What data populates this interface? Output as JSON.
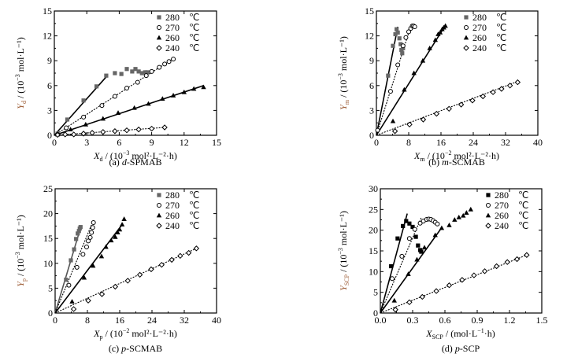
{
  "chart_data": [
    {
      "id": "a",
      "type": "scatter",
      "caption_prefix": "(a) ",
      "caption_italic": "d",
      "caption_suffix": "-SPMAB",
      "xlabel_sym": "X",
      "xlabel_sub": "d",
      "xlabel_rest": " / (10",
      "xlabel_exp": "−3",
      "xlabel_tail": " mol²·L⁻²·h)",
      "ylabel_sym": "Y",
      "ylabel_sub": "d",
      "ylabel_rest": " / (10",
      "ylabel_exp": "−3",
      "ylabel_tail": " mol·L⁻¹)",
      "xlim": [
        0,
        15
      ],
      "ylim": [
        0,
        15
      ],
      "xticks": [
        "0",
        "3",
        "6",
        "9",
        "12",
        "15"
      ],
      "yticks": [
        "0",
        "3",
        "6",
        "9",
        "12",
        "15"
      ],
      "series": [
        {
          "name": "280",
          "unit": "℃",
          "marker": "square",
          "color": "#666666",
          "x": [
            0.3,
            1.2,
            2.7,
            3.9,
            4.8,
            5.6,
            6.2,
            6.7,
            7.2,
            7.5,
            7.8,
            8.1,
            8.4,
            8.6
          ],
          "y": [
            0.2,
            1.9,
            4.2,
            5.9,
            7.2,
            7.5,
            7.4,
            8.0,
            7.7,
            8.0,
            7.7,
            7.5,
            7.6,
            7.6
          ],
          "fit": {
            "x": [
              0,
              4.9
            ],
            "y": [
              0,
              7.2
            ],
            "style": "solid"
          }
        },
        {
          "name": "270",
          "unit": "℃",
          "marker": "circle",
          "color": "#000000",
          "x": [
            0.3,
            1.1,
            2.7,
            4.4,
            5.6,
            6.7,
            7.7,
            8.5,
            9.0,
            9.7,
            10.2,
            10.6,
            11.0
          ],
          "y": [
            0.1,
            0.9,
            2.2,
            3.6,
            4.7,
            5.7,
            6.4,
            7.2,
            7.7,
            8.2,
            8.6,
            8.9,
            9.2
          ],
          "fit": {
            "x": [
              0,
              10.8
            ],
            "y": [
              0,
              9.1
            ],
            "style": "dotted"
          }
        },
        {
          "name": "260",
          "unit": "℃",
          "marker": "triangle",
          "color": "#000000",
          "x": [
            0.3,
            1.5,
            2.9,
            4.5,
            5.9,
            7.4,
            8.7,
            10.0,
            11.0,
            12.0,
            12.9,
            13.8
          ],
          "y": [
            0.1,
            0.7,
            1.3,
            2.0,
            2.7,
            3.3,
            3.8,
            4.4,
            4.8,
            5.2,
            5.6,
            5.8
          ],
          "fit": {
            "x": [
              0,
              13.8
            ],
            "y": [
              0,
              6.0
            ],
            "style": "solid"
          }
        },
        {
          "name": "240",
          "unit": "℃",
          "marker": "diamond",
          "color": "#000000",
          "x": [
            0.3,
            1.0,
            1.8,
            2.7,
            3.5,
            4.5,
            5.6,
            6.7,
            7.8,
            9.0,
            10.2
          ],
          "y": [
            0.05,
            0.1,
            0.1,
            0.2,
            0.3,
            0.4,
            0.5,
            0.6,
            0.7,
            0.8,
            0.95
          ],
          "fit": {
            "x": [
              0,
              10.2
            ],
            "y": [
              0,
              0.95
            ],
            "style": "dotted"
          }
        }
      ]
    },
    {
      "id": "b",
      "type": "scatter",
      "caption_prefix": "(b) ",
      "caption_italic": "m",
      "caption_suffix": "-SCMAB",
      "xlabel_sym": "X",
      "xlabel_sub": "m",
      "xlabel_rest": " / (10",
      "xlabel_exp": "−2",
      "xlabel_tail": " mol²·L⁻²·h)",
      "ylabel_sym": "Y",
      "ylabel_sub": "m",
      "ylabel_rest": " / (10",
      "ylabel_exp": "−3",
      "ylabel_tail": " mol·L⁻¹)",
      "xlim": [
        0,
        40
      ],
      "ylim": [
        0,
        15
      ],
      "xticks": [
        "0",
        "8",
        "16",
        "24",
        "32",
        "40"
      ],
      "yticks": [
        "0",
        "3",
        "6",
        "9",
        "12",
        "15"
      ],
      "series": [
        {
          "name": "280",
          "unit": "℃",
          "marker": "square",
          "color": "#666666",
          "x": [
            2.9,
            4.1,
            4.7,
            5.0,
            5.3,
            5.7,
            6.0,
            6.2,
            6.4,
            6.6
          ],
          "y": [
            7.2,
            10.8,
            12.2,
            12.8,
            12.4,
            11.7,
            11.0,
            10.3,
            9.9,
            10.5
          ],
          "fit": {
            "x": [
              0,
              5.3
            ],
            "y": [
              0,
              13.1
            ],
            "style": "solid"
          }
        },
        {
          "name": "270",
          "unit": "℃",
          "marker": "circle",
          "color": "#000000",
          "x": [
            0.3,
            3.5,
            5.3,
            6.6,
            7.3,
            8.0,
            8.5,
            8.9,
            9.2,
            9.5
          ],
          "y": [
            0.6,
            5.3,
            8.5,
            10.8,
            11.8,
            12.5,
            12.9,
            13.2,
            13.2,
            13.1
          ],
          "fit": {
            "x": [
              0,
              8.6
            ],
            "y": [
              0,
              13.3
            ],
            "style": "dotted"
          }
        },
        {
          "name": "260",
          "unit": "℃",
          "marker": "triangle",
          "color": "#000000",
          "x": [
            4.1,
            6.9,
            9.3,
            11.5,
            13.2,
            14.6,
            15.3,
            15.8,
            16.3,
            16.7,
            17.1
          ],
          "y": [
            1.7,
            5.5,
            7.5,
            9.0,
            10.5,
            11.5,
            12.2,
            12.4,
            12.8,
            13.0,
            13.2
          ],
          "fit": {
            "x": [
              0,
              17.0
            ],
            "y": [
              0,
              13.2
            ],
            "style": "solid"
          }
        },
        {
          "name": "240",
          "unit": "℃",
          "marker": "diamond",
          "color": "#000000",
          "x": [
            4.6,
            8.2,
            11.6,
            14.9,
            18.0,
            21.0,
            23.8,
            26.4,
            28.9,
            31.0,
            33.1,
            35.0
          ],
          "y": [
            0.5,
            1.3,
            1.9,
            2.6,
            3.2,
            3.7,
            4.2,
            4.7,
            5.2,
            5.6,
            6.0,
            6.4
          ],
          "fit": {
            "x": [
              0,
              35.0
            ],
            "y": [
              0,
              6.5
            ],
            "style": "dotted"
          }
        }
      ]
    },
    {
      "id": "c",
      "type": "scatter",
      "caption_prefix": "(c) ",
      "caption_italic": "p",
      "caption_suffix": "-SCMAB",
      "xlabel_sym": "X",
      "xlabel_sub": "p",
      "xlabel_rest": " / (10",
      "xlabel_exp": "−2",
      "xlabel_tail": " mol²·L⁻²·h)",
      "ylabel_sym": "Y",
      "ylabel_sub": "p",
      "ylabel_rest": " / (10",
      "ylabel_exp": "−3",
      "ylabel_tail": " mol·L⁻¹)",
      "xlim": [
        0,
        40
      ],
      "ylim": [
        0,
        25
      ],
      "xticks": [
        "0",
        "8",
        "16",
        "24",
        "32",
        "40"
      ],
      "yticks": [
        "0",
        "5",
        "10",
        "15",
        "20",
        "25"
      ],
      "series": [
        {
          "name": "280",
          "unit": "℃",
          "marker": "square",
          "color": "#666666",
          "x": [
            2.7,
            3.9,
            4.7,
            5.2,
            5.6,
            5.9,
            6.1,
            6.3
          ],
          "y": [
            6.7,
            10.6,
            12.8,
            14.9,
            16.0,
            16.5,
            17.0,
            17.3
          ],
          "fit": {
            "x": [
              0,
              6.4
            ],
            "y": [
              0,
              17.4
            ],
            "style": "solid"
          }
        },
        {
          "name": "270",
          "unit": "℃",
          "marker": "circle",
          "color": "#000000",
          "x": [
            3.4,
            5.4,
            6.9,
            7.8,
            8.2,
            8.7,
            9.0,
            9.3,
            9.5
          ],
          "y": [
            5.6,
            9.2,
            11.8,
            13.3,
            14.5,
            15.2,
            16.2,
            17.2,
            18.2
          ],
          "fit": {
            "x": [
              0,
              9.3
            ],
            "y": [
              0,
              18.3
            ],
            "style": "dotted"
          }
        },
        {
          "name": "260",
          "unit": "℃",
          "marker": "triangle",
          "color": "#000000",
          "x": [
            4.2,
            7.2,
            9.4,
            11.5,
            12.6,
            13.9,
            14.9,
            15.5,
            16.0,
            16.6,
            17.1
          ],
          "y": [
            2.3,
            7.1,
            9.5,
            11.4,
            13.3,
            14.6,
            15.3,
            16.2,
            16.8,
            17.8,
            18.9
          ],
          "fit": {
            "x": [
              0,
              16.8
            ],
            "y": [
              0,
              18.0
            ],
            "style": "solid"
          }
        },
        {
          "name": "240",
          "unit": "℃",
          "marker": "diamond",
          "color": "#000000",
          "x": [
            4.6,
            8.2,
            11.6,
            14.9,
            18.0,
            21.0,
            23.8,
            26.4,
            28.9,
            31.0,
            33.1,
            35.0
          ],
          "y": [
            0.8,
            2.5,
            3.8,
            5.3,
            6.5,
            7.7,
            8.8,
            9.7,
            10.7,
            11.5,
            12.1,
            13.0
          ],
          "fit": {
            "x": [
              0,
              35.0
            ],
            "y": [
              0,
              13.0
            ],
            "style": "dotted"
          }
        }
      ]
    },
    {
      "id": "d",
      "type": "scatter",
      "caption_prefix": "(d) ",
      "caption_italic": "p",
      "caption_suffix": "-SCP",
      "xlabel_sym": "X",
      "xlabel_sub": "SCP",
      "xlabel_rest": " / (mol·L",
      "xlabel_exp": "−1",
      "xlabel_tail": "·h)",
      "ylabel_sym": "Y",
      "ylabel_sub": "SCP",
      "ylabel_rest": " / (10",
      "ylabel_exp": "−3",
      "ylabel_tail": " mol·L⁻¹)",
      "xlim": [
        0,
        1.5
      ],
      "ylim": [
        0,
        30
      ],
      "xticks": [
        "0.0",
        "0.3",
        "0.6",
        "0.9",
        "1.2",
        "1.5"
      ],
      "yticks": [
        "0",
        "5",
        "10",
        "15",
        "20",
        "25",
        "30"
      ],
      "series": [
        {
          "name": "280",
          "unit": "℃",
          "marker": "square",
          "color": "#000000",
          "x": [
            0.1,
            0.16,
            0.21,
            0.24,
            0.27,
            0.3,
            0.33,
            0.35,
            0.37,
            0.38
          ],
          "y": [
            11.3,
            18.0,
            21.0,
            22.2,
            21.6,
            20.8,
            18.4,
            16.3,
            15.2,
            14.8
          ],
          "fit": {
            "x": [
              0,
              0.25
            ],
            "y": [
              0,
              24.0
            ],
            "style": "solid"
          }
        },
        {
          "name": "270",
          "unit": "℃",
          "marker": "circle",
          "color": "#000000",
          "x": [
            0.11,
            0.2,
            0.27,
            0.32,
            0.37,
            0.4,
            0.43,
            0.45,
            0.47,
            0.49,
            0.51,
            0.53
          ],
          "y": [
            8.3,
            13.7,
            18.0,
            20.2,
            21.7,
            22.2,
            22.6,
            22.7,
            22.6,
            22.3,
            21.9,
            21.5
          ],
          "fit": {
            "x": [
              0,
              0.38
            ],
            "y": [
              0,
              23.0
            ],
            "style": "dotted"
          }
        },
        {
          "name": "260",
          "unit": "℃",
          "marker": "triangle",
          "color": "#000000",
          "x": [
            0.13,
            0.26,
            0.34,
            0.41,
            0.51,
            0.57,
            0.64,
            0.69,
            0.73,
            0.77,
            0.8,
            0.84
          ],
          "y": [
            3.0,
            9.4,
            12.9,
            15.8,
            18.8,
            20.5,
            21.2,
            22.5,
            23.1,
            23.5,
            24.2,
            25.0
          ],
          "fit": {
            "x": [
              0,
              0.57
            ],
            "y": [
              0,
              20.6
            ],
            "style": "solid"
          }
        },
        {
          "name": "240",
          "unit": "℃",
          "marker": "diamond",
          "color": "#000000",
          "x": [
            0.14,
            0.27,
            0.39,
            0.52,
            0.64,
            0.76,
            0.87,
            0.97,
            1.08,
            1.18,
            1.27,
            1.36
          ],
          "y": [
            0.8,
            2.6,
            3.9,
            5.3,
            6.7,
            8.0,
            9.1,
            10.1,
            11.3,
            12.3,
            13.0,
            14.0
          ],
          "fit": {
            "x": [
              0,
              1.36
            ],
            "y": [
              0,
              14.0
            ],
            "style": "dotted"
          }
        }
      ]
    }
  ]
}
